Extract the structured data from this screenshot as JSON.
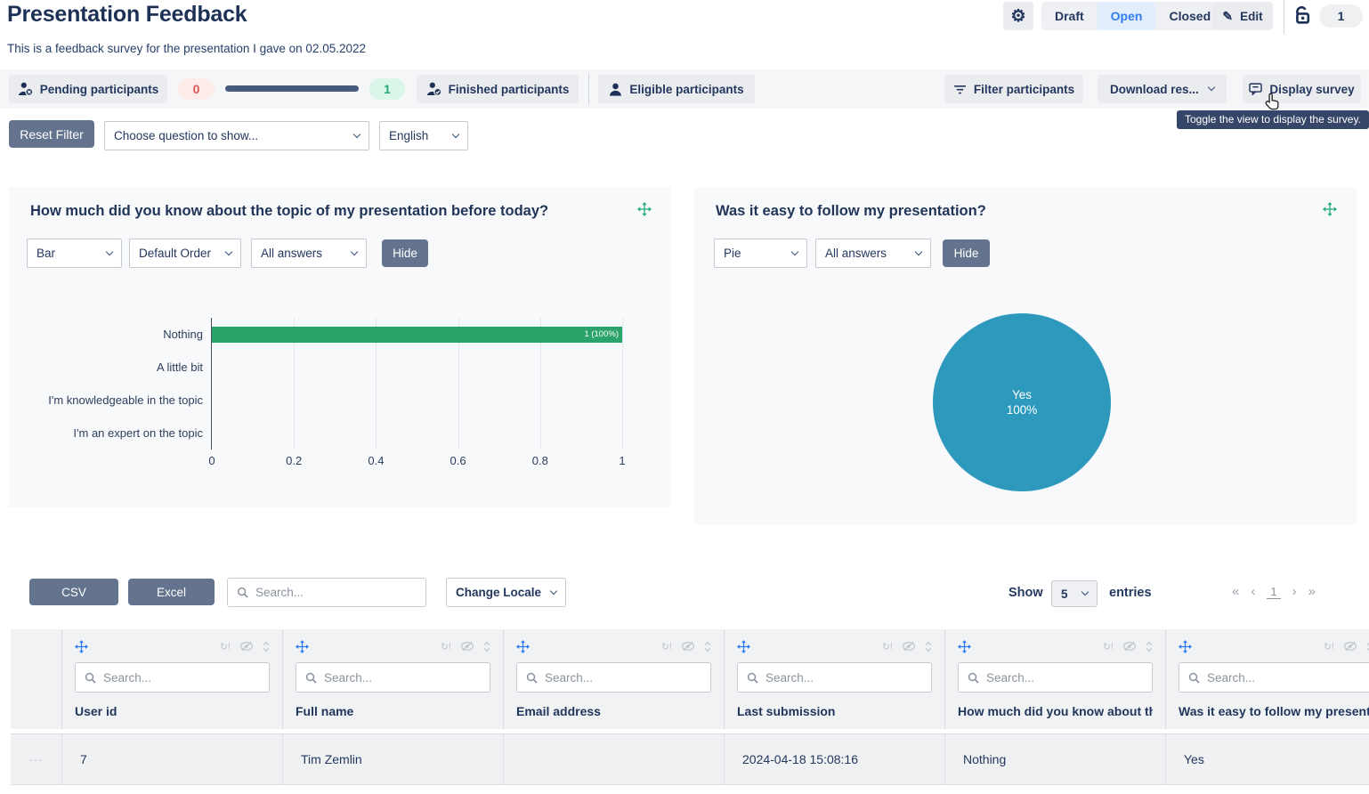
{
  "header": {
    "title": "Presentation Feedback",
    "subtitle": "This is a feedback survey for the presentation I gave on 02.05.2022",
    "status": {
      "draft": "Draft",
      "open": "Open",
      "closed": "Closed",
      "selected": "Open"
    },
    "edit_label": "Edit",
    "response_count": "1"
  },
  "toolbar": {
    "pending_label": "Pending participants",
    "pending_count": "0",
    "finished_count": "1",
    "finished_label": "Finished participants",
    "eligible_label": "Eligible participants",
    "filter_label": "Filter participants",
    "download_label": "Download res...",
    "display_label": "Display survey",
    "display_tooltip": "Toggle the view to display the survey."
  },
  "filter_bar": {
    "reset_label": "Reset Filter",
    "question_select": "Choose question to show...",
    "language_select": "English"
  },
  "cards": [
    {
      "title": "How much did you know about the topic of my presentation before today?",
      "type_select": "Bar",
      "order_select": "Default Order",
      "answers_select": "All answers",
      "hide_label": "Hide"
    },
    {
      "title": "Was it easy to follow my presentation?",
      "type_select": "Pie",
      "answers_select": "All answers",
      "hide_label": "Hide"
    }
  ],
  "chart_data": [
    {
      "type": "bar",
      "orientation": "horizontal",
      "title": "How much did you know about the topic of my presentation before today?",
      "categories": [
        "Nothing",
        "A little bit",
        "I'm knowledgeable in the topic",
        "I'm an expert on the topic"
      ],
      "values": [
        1,
        0,
        0,
        0
      ],
      "bar_label": "1 (100%)",
      "xlim": [
        0,
        1
      ],
      "xticks": [
        "0",
        "0.2",
        "0.4",
        "0.6",
        "0.8",
        "1"
      ],
      "bar_color": "#2aa36a",
      "grid": true,
      "legend": "none"
    },
    {
      "type": "pie",
      "title": "Was it easy to follow my presentation?",
      "labels": [
        "Yes"
      ],
      "values": [
        100
      ],
      "center_label_line1": "Yes",
      "center_label_line2": "100%",
      "color": "#2d9abd",
      "legend": "none"
    }
  ],
  "table": {
    "csv_label": "CSV",
    "excel_label": "Excel",
    "search_placeholder": "Search...",
    "locale_label": "Change Locale",
    "show_label": "Show",
    "page_size": "5",
    "entries_label": "entries",
    "pagination": {
      "first": "«",
      "prev": "‹",
      "page": "1",
      "next": "›",
      "last": "»"
    },
    "column_search_placeholder": "Search...",
    "columns": [
      "User id",
      "Full name",
      "Email address",
      "Last submission",
      "How much did you know about the topic of my presentation before today?",
      "Was it easy to follow my presentation?"
    ],
    "row_menu": "···",
    "rows": [
      [
        "7",
        "Tim Zemlin",
        "",
        "2024-04-18 15:08:16",
        "Nothing",
        "Yes"
      ]
    ]
  },
  "colors": {
    "accent_blue": "#2f7df0",
    "move_green": "#23a97e",
    "bar_green": "#2aa36a",
    "pie_teal": "#2d9abd",
    "slate_button": "#64748e",
    "navy_text": "#23395f",
    "badge_red_bg": "#fcebe9",
    "badge_red_text": "#dd5552",
    "badge_green_bg": "#d9f6e9",
    "badge_green_text": "#29a87c",
    "progress_bar": "#485a7c",
    "tooltip_bg": "#364668"
  }
}
